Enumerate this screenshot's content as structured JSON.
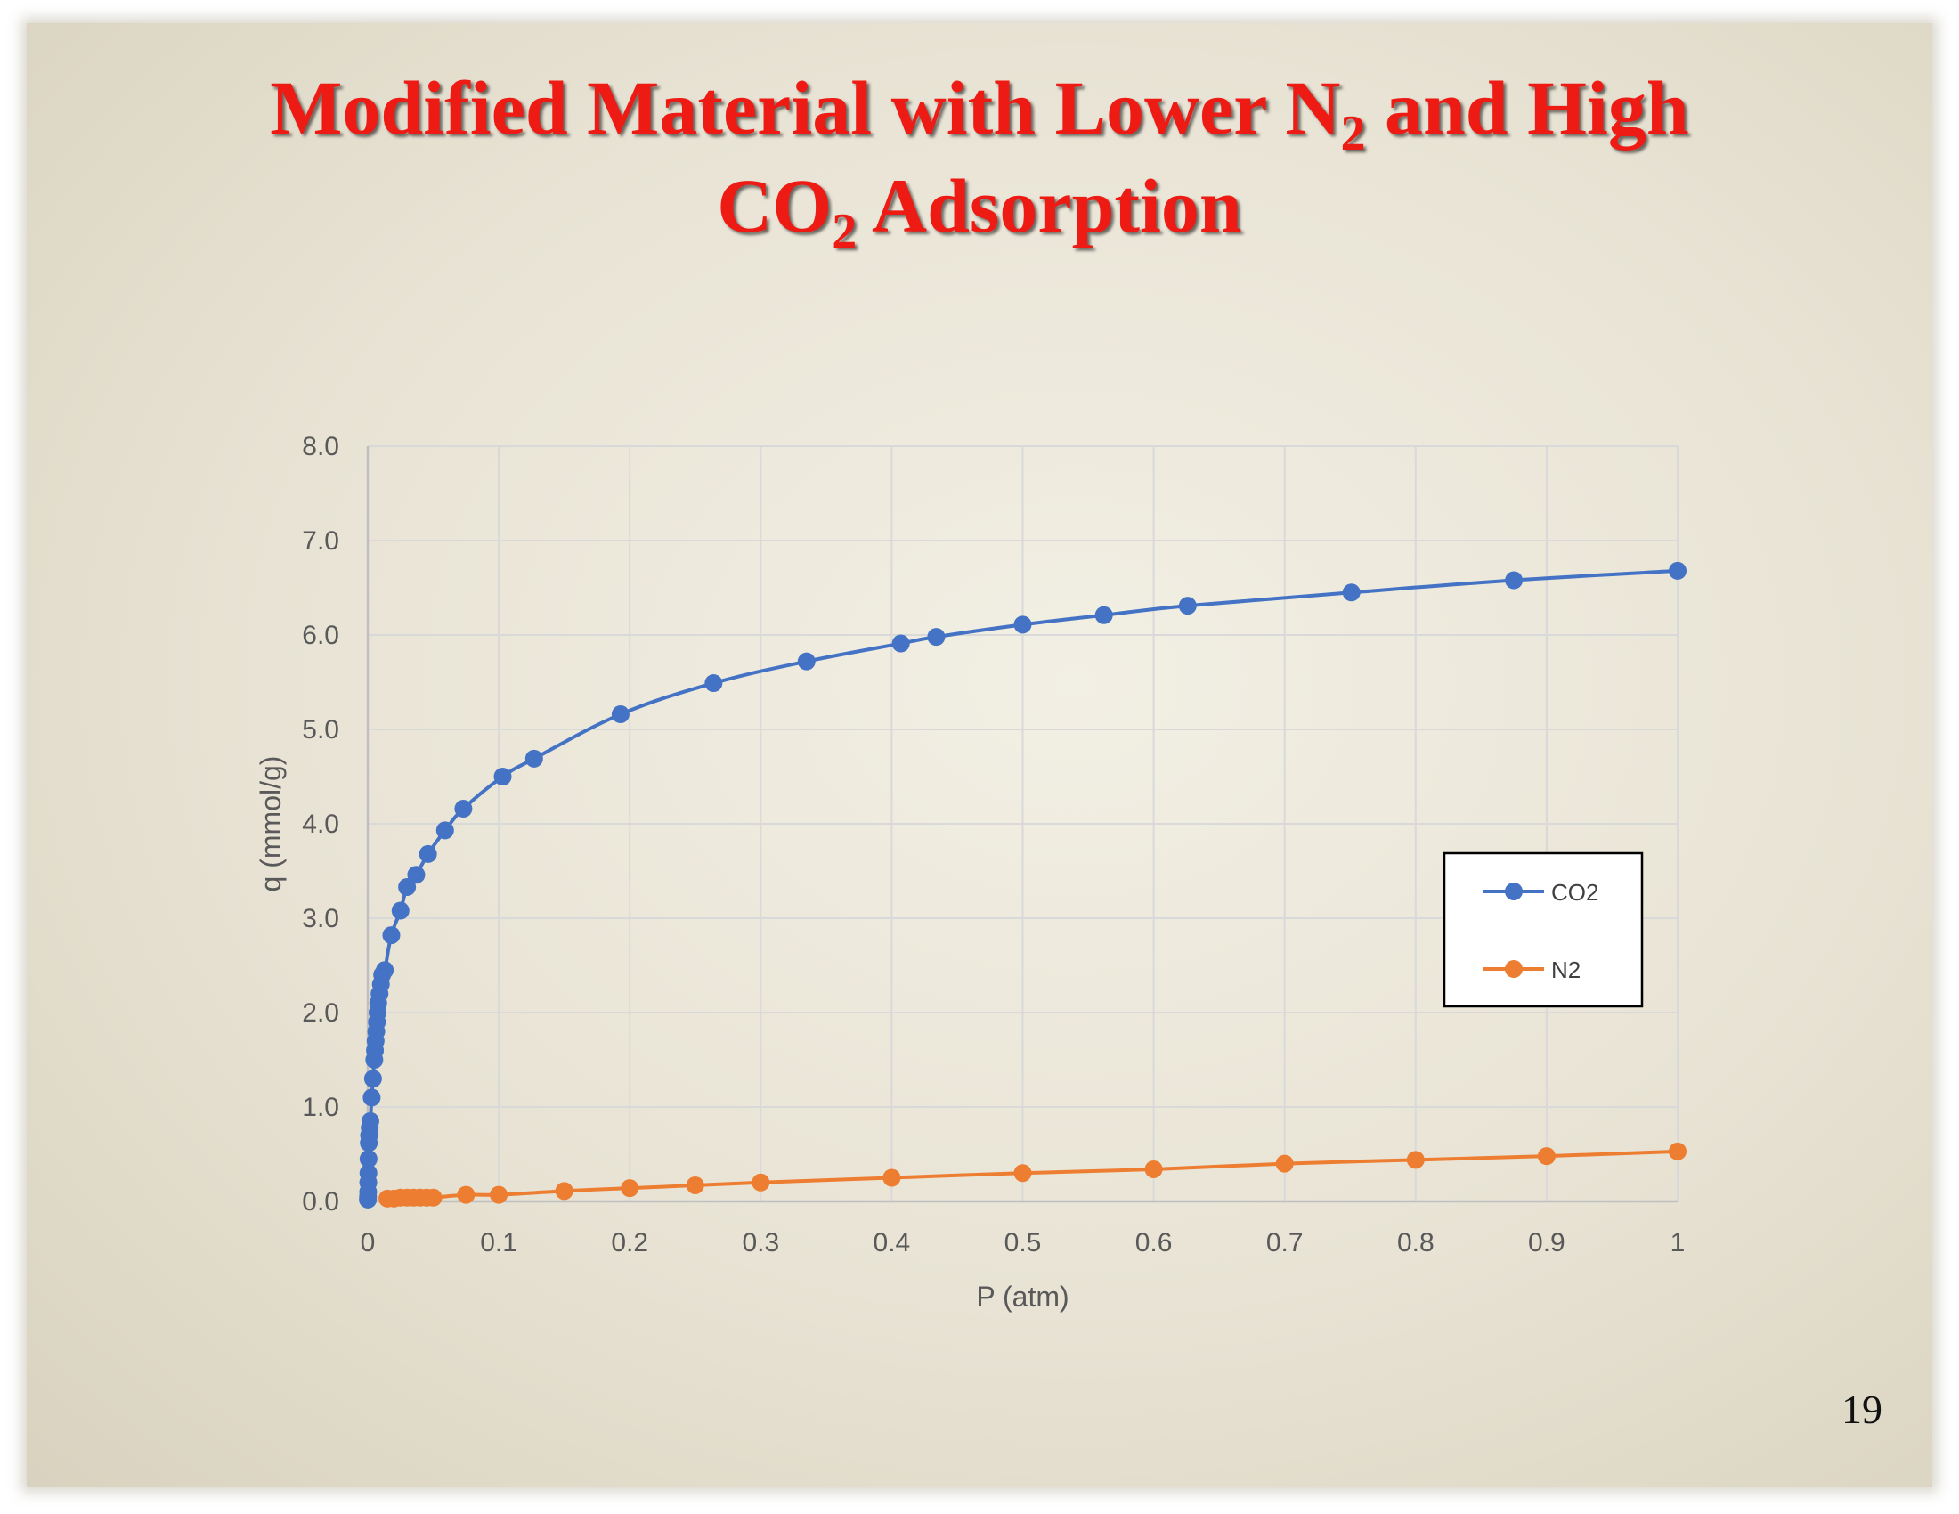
{
  "slide": {
    "title_part1": "Modified Material with Lower N",
    "title_sub1": "2",
    "title_part2": " and High",
    "title_part3": "CO",
    "title_sub2": "2",
    "title_part4": " Adsorption",
    "page_number": "19"
  },
  "colors": {
    "title": "#ee1a14",
    "co2": "#4472c4",
    "n2": "#ed7d31",
    "grid": "#d9d9d9",
    "axis_text": "#595959"
  },
  "chart_data": {
    "type": "line",
    "title": "",
    "xlabel": "P (atm)",
    "ylabel": "q (mmol/g)",
    "xlim": [
      0,
      1
    ],
    "ylim": [
      0,
      8
    ],
    "xticks": [
      "0",
      "0.1",
      "0.2",
      "0.3",
      "0.4",
      "0.5",
      "0.6",
      "0.7",
      "0.8",
      "0.9",
      "1"
    ],
    "yticks": [
      "0.0",
      "1.0",
      "2.0",
      "3.0",
      "4.0",
      "5.0",
      "6.0",
      "7.0",
      "8.0"
    ],
    "grid": true,
    "legend_position": "right",
    "series": [
      {
        "name": "CO2",
        "x": [
          0.0001,
          0.0002,
          0.0003,
          0.0004,
          0.0005,
          0.0006,
          0.0008,
          0.001,
          0.0015,
          0.002,
          0.003,
          0.004,
          0.005,
          0.0055,
          0.006,
          0.0065,
          0.007,
          0.0075,
          0.008,
          0.009,
          0.01,
          0.011,
          0.013,
          0.018,
          0.025,
          0.03,
          0.037,
          0.046,
          0.059,
          0.073,
          0.103,
          0.127,
          0.193,
          0.264,
          0.335,
          0.407,
          0.434,
          0.5,
          0.562,
          0.626,
          0.751,
          0.875,
          1.0
        ],
        "y": [
          0.02,
          0.05,
          0.1,
          0.2,
          0.3,
          0.45,
          0.62,
          0.7,
          0.78,
          0.85,
          1.1,
          1.3,
          1.5,
          1.6,
          1.7,
          1.8,
          1.9,
          2.0,
          2.1,
          2.2,
          2.3,
          2.4,
          2.45,
          2.82,
          3.08,
          3.33,
          3.46,
          3.68,
          3.93,
          4.16,
          4.5,
          4.69,
          5.16,
          5.49,
          5.72,
          5.91,
          5.98,
          6.11,
          6.21,
          6.31,
          6.45,
          6.58,
          6.68
        ]
      },
      {
        "name": "N2",
        "x": [
          0.015,
          0.02,
          0.025,
          0.03,
          0.035,
          0.04,
          0.045,
          0.05,
          0.075,
          0.1,
          0.15,
          0.2,
          0.25,
          0.3,
          0.4,
          0.5,
          0.6,
          0.7,
          0.8,
          0.9,
          1.0
        ],
        "y": [
          0.03,
          0.03,
          0.04,
          0.04,
          0.04,
          0.04,
          0.04,
          0.04,
          0.07,
          0.07,
          0.11,
          0.14,
          0.17,
          0.2,
          0.25,
          0.3,
          0.34,
          0.4,
          0.44,
          0.48,
          0.53
        ]
      }
    ]
  }
}
